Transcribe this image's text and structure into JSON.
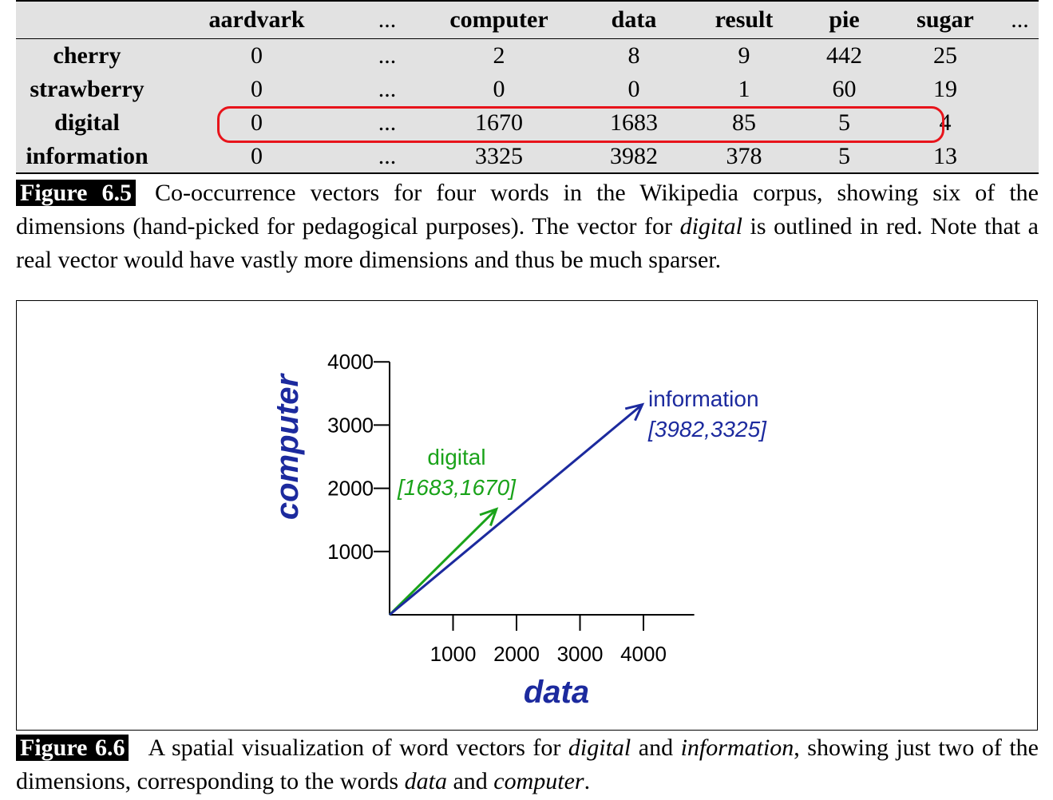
{
  "table": {
    "columns": [
      "",
      "aardvark",
      "...",
      "computer",
      "data",
      "result",
      "pie",
      "sugar",
      "..."
    ],
    "rows": [
      {
        "word": "cherry",
        "values": [
          "0",
          "...",
          "2",
          "8",
          "9",
          "442",
          "25"
        ]
      },
      {
        "word": "strawberry",
        "values": [
          "0",
          "...",
          "0",
          "0",
          "1",
          "60",
          "19"
        ]
      },
      {
        "word": "digital",
        "values": [
          "0",
          "...",
          "1670",
          "1683",
          "85",
          "5",
          "4"
        ]
      },
      {
        "word": "information",
        "values": [
          "0",
          "...",
          "3325",
          "3982",
          "378",
          "5",
          "13"
        ]
      }
    ]
  },
  "figure_6_5": {
    "label": "Figure 6.5",
    "text_1": "Co-occurrence vectors for four words in the Wikipedia corpus, showing six of the dimensions (hand-picked for pedagogical purposes). The vector for ",
    "emph_1": "digital",
    "text_2": " is outlined in red. Note that a real vector would have vastly more dimensions and thus be much sparser."
  },
  "figure_6_6": {
    "label": "Figure 6.6",
    "text_1": "A spatial visualization of word vectors for ",
    "emph_1": "digital",
    "text_2": " and ",
    "emph_2": "information",
    "text_3": ", showing just two of the dimensions, corresponding to the words ",
    "emph_3": "data",
    "text_4": " and ",
    "emph_4": "computer",
    "text_5": "."
  },
  "colors": {
    "highlight": "#e8141b",
    "digital": "#1aa31a",
    "information": "#1c2a9e",
    "axis_label": "#1c2a9e"
  },
  "chart_data": {
    "type": "vector",
    "xlabel": "data",
    "ylabel": "computer",
    "xlim": [
      0,
      4800
    ],
    "ylim": [
      0,
      4000
    ],
    "xticks": [
      1000,
      2000,
      3000,
      4000
    ],
    "yticks": [
      1000,
      2000,
      3000,
      4000
    ],
    "series": [
      {
        "name": "digital",
        "label": "[1683,1670]",
        "x": 1683,
        "y": 1670,
        "color": "#1aa31a"
      },
      {
        "name": "information",
        "label": "[3982,3325]",
        "x": 3982,
        "y": 3325,
        "color": "#1c2a9e"
      }
    ]
  }
}
